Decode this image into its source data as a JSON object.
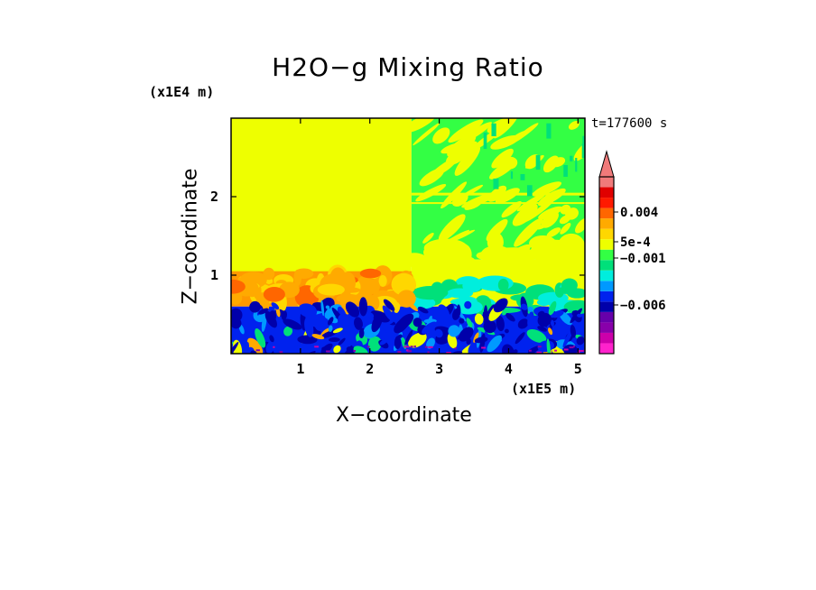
{
  "chart_data": {
    "type": "heatmap",
    "title": "H2O−g Mixing Ratio",
    "xlabel": "X−coordinate",
    "ylabel": "Z−coordinate",
    "x_scale_label": "(x1E5 m)",
    "z_scale_label": "(x1E4 m)",
    "time_label": "t=177600  s",
    "xlim": [
      0.0,
      5.1
    ],
    "ylim": [
      0.0,
      3.0
    ],
    "x_ticks": [
      {
        "value": 1,
        "label": "1"
      },
      {
        "value": 2,
        "label": "2"
      },
      {
        "value": 3,
        "label": "3"
      },
      {
        "value": 4,
        "label": "4"
      },
      {
        "value": 5,
        "label": "5"
      }
    ],
    "y_ticks": [
      {
        "value": 1,
        "label": "1"
      },
      {
        "value": 2,
        "label": "2"
      }
    ],
    "colorbar": {
      "colors": [
        "#ff22cc",
        "#cc00aa",
        "#8800aa",
        "#6600aa",
        "#0000aa",
        "#0022ee",
        "#0099ff",
        "#00eedd",
        "#00e07a",
        "#33ff44",
        "#eeff00",
        "#ffd700",
        "#ffaa00",
        "#ff6600",
        "#ff1a00",
        "#e00000",
        "#f07a7a"
      ],
      "labels": [
        "0.004",
        "5e-4",
        "−0.001",
        "−0.006"
      ],
      "top_arrow": true
    },
    "regions": [
      {
        "name": "upper-left",
        "x": [
          0.0,
          2.6
        ],
        "z": [
          0.65,
          3.0
        ],
        "dominant_color": "#eeff00"
      },
      {
        "name": "upper-right",
        "x": [
          2.6,
          5.1
        ],
        "z": [
          1.2,
          3.0
        ],
        "dominant_color": "#33ff44"
      },
      {
        "name": "mid-right",
        "x": [
          2.6,
          5.1
        ],
        "z": [
          0.6,
          1.2
        ],
        "dominant_color": "#eeff00"
      },
      {
        "name": "left-convective-band",
        "x": [
          0.0,
          2.6
        ],
        "z": [
          0.6,
          1.05
        ],
        "dominant_color": "#ff9900"
      },
      {
        "name": "lower-boundary-layer",
        "x": [
          0.0,
          5.1
        ],
        "z": [
          0.0,
          0.6
        ],
        "dominant_color": "#0022ee"
      }
    ]
  }
}
